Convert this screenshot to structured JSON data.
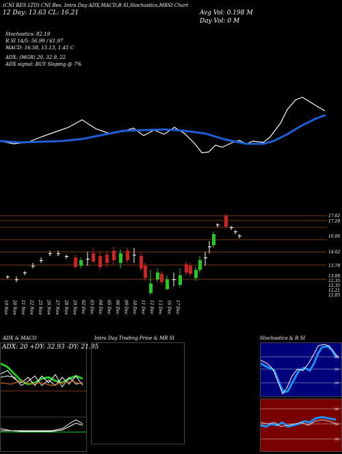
{
  "header": {
    "title_line1": "(CNI RES LTD) CNI Res. Intra Day ADX,MACD,B SI,Stochastics,MRSI Chart",
    "title_line2": "12 Day: 13.63 CL: 16.21",
    "avg_vol": "Avg Vol: 0.198  M",
    "day_vol": "Day Vol: 0  M",
    "stochastics": "Stochastics: 82.19",
    "rsi": "R       SI 14/5: 56.99 / 61.97",
    "macd": "MACD: 16.58, 15.13, 1.45 C",
    "adx": "ADX:                    (MGR) 20, 32.9, 22",
    "adx_signal": "ADX  signal:                    BUY Sloping @ 7%"
  },
  "price_axis": {
    "labels": [
      "17.62",
      "17.29",
      "16.06",
      "14.62",
      "13.79",
      "13.08",
      "12.35",
      "12.35",
      "12.21",
      "12.05"
    ]
  },
  "date_axis": {
    "labels": [
      "19 Nov",
      "20 Nov",
      "21 Nov",
      "22 Nov",
      "25 Nov",
      "26 Nov",
      "27 Nov",
      "28 Nov",
      "29 Nov",
      "02 Dec",
      "03 Dec",
      "04 Dec",
      "05 Dec",
      "06 Dec",
      "09 Dec",
      "10 Dec",
      "11 Dec",
      "12 Dec",
      "13 Dec",
      "16 Dec",
      "17 Dec"
    ]
  },
  "panels": {
    "adx_macd_title": "ADX  & MACD",
    "adx_values": "ADX: 20  +DY: 32.93  -DY: 21.95",
    "intraday_title": "Intra  Day Trading Price  & MR                SI",
    "stoch_title": "Stochastics & R               SI",
    "stoch_levels": [
      "80",
      "50",
      "20"
    ],
    "rsi_levels": [
      "80",
      "50",
      "20"
    ],
    "adx_levels": [
      "25"
    ]
  },
  "colors": {
    "up_candle": "#22cc22",
    "down_candle": "#cc2222",
    "ma_line": "#1e5fd6",
    "grid_line": "#7a3c14",
    "stoch_bg": "#00007a",
    "rsi_bg": "#7a0000"
  }
}
